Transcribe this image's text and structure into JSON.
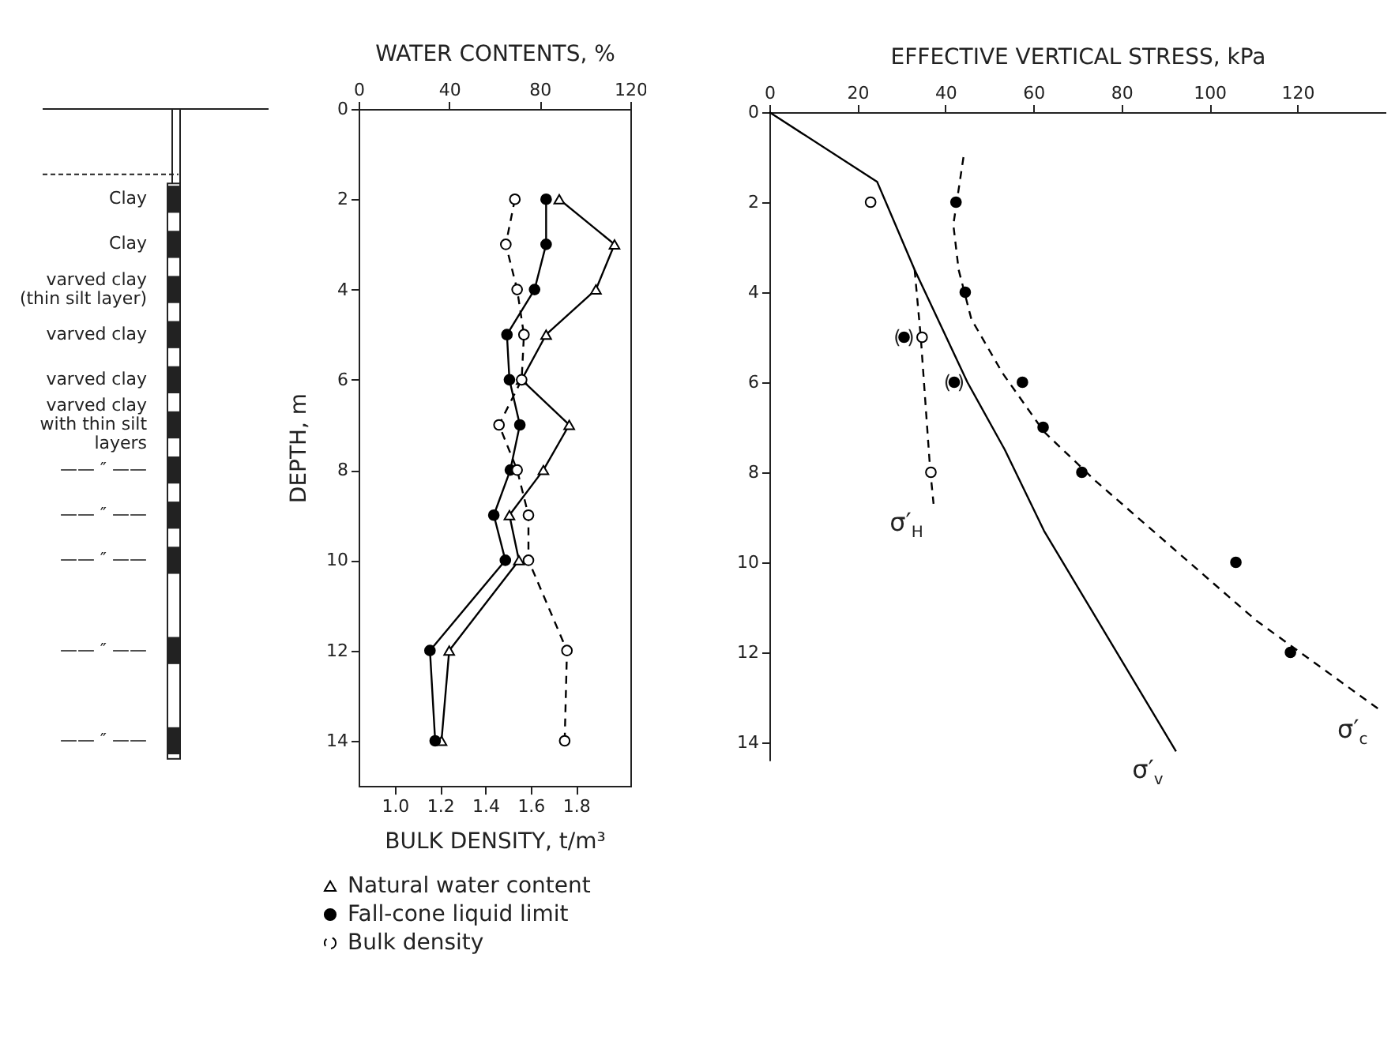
{
  "chart_data": [
    {
      "type": "other",
      "annotations": [
        "Clay",
        "Clay",
        "varved clay\n(thin silt layer)",
        "varved clay",
        "varved clay",
        "varved clay\nwith thin silt\nlayers",
        "—— ″ ——",
        "—— ″ ——",
        "—— ″ ——",
        "—— ″ ——",
        "—— ″ ——"
      ]
    },
    {
      "type": "line",
      "xlabel": "BULK DENSITY, t/m³",
      "x2label": "WATER CONTENTS, %",
      "ylabel": "DEPTH, m",
      "xlim": [
        0.84,
        2.04
      ],
      "xticks": [
        {
          "value": 1,
          "label": "1.0"
        },
        1.2,
        1.4,
        1.6,
        1.8
      ],
      "x2lim": [
        0,
        120
      ],
      "x2ticks": [
        0,
        40,
        80,
        120
      ],
      "ylim": [
        15,
        0
      ],
      "yticks": [
        0,
        2,
        4,
        6,
        8,
        10,
        12,
        14
      ],
      "legend": "bottom",
      "series": [
        {
          "name": "Natural water content",
          "color": "#000000",
          "axis": "x2",
          "marker": "triangle",
          "line_style": "solid",
          "x": [
            88.6,
            113,
            104.8,
            82.8,
            72,
            93,
            81.6,
            66.6,
            70.8,
            40,
            36.6
          ],
          "values": [
            2,
            3,
            4,
            5,
            6,
            7,
            8,
            9,
            10,
            12,
            14
          ]
        },
        {
          "name": "Fall-cone liquid limit",
          "color": "#000000",
          "axis": "x2",
          "marker": "circle",
          "line_style": "solid",
          "x": [
            82.8,
            82.8,
            77.7,
            65.5,
            66.6,
            71.2,
            67,
            59.7,
            64.8,
            31.5,
            33.8
          ],
          "values": [
            2,
            3,
            4,
            5,
            6,
            7,
            8,
            9,
            10,
            12,
            14
          ]
        },
        {
          "name": "Bulk density",
          "color": "#000000",
          "marker": "circle",
          "line_style": "dashed",
          "x": [
            1.53,
            1.49,
            1.54,
            1.57,
            1.56,
            1.46,
            1.54,
            1.59,
            1.59,
            1.76,
            1.75
          ],
          "values": [
            2,
            3,
            4,
            5,
            6,
            7,
            8,
            9,
            10,
            12,
            14
          ]
        }
      ]
    },
    {
      "type": "line",
      "xlabel": "EFFECTIVE VERTICAL STRESS, kPa",
      "xlim": [
        0,
        140
      ],
      "xticks": [
        0,
        20,
        40,
        60,
        80,
        100,
        120
      ],
      "ylim": [
        14.4,
        0
      ],
      "yticks": [
        0,
        2,
        4,
        6,
        8,
        10,
        12,
        14
      ],
      "series": [
        {
          "name": "σ′$_{v}$",
          "color": "#000000",
          "line_style": "solid",
          "marker": "none",
          "x": [
            0,
            24.5,
            33,
            45,
            53.5,
            62.4,
            92.4
          ],
          "values": [
            0,
            1.55,
            3.5,
            6,
            7.5,
            9.3,
            14.2
          ]
        },
        {
          "name": "σ′$_{H}$",
          "color": "#000000",
          "line_style": "dashed",
          "marker": "none",
          "x": [
            33,
            34.4,
            36.5,
            37.3
          ],
          "values": [
            3.5,
            5,
            7.9,
            8.7
          ]
        },
        {
          "name": "σ′$_{c}$",
          "color": "#000000",
          "line_style": "dashed",
          "marker": "none",
          "x": [
            44.1,
            41.8,
            43,
            45.9,
            53,
            62.4,
            74.2,
            110.7,
            139
          ],
          "values": [
            1,
            2.5,
            3.5,
            4.6,
            5.8,
            7.1,
            8.2,
            11.3,
            13.3
          ]
        },
        {
          "type": "scatter",
          "color": "#000000",
          "marker": "circle",
          "x": [
            42.4,
            44.5,
            30.6,
            42,
            57.5,
            62.2,
            71,
            106,
            118.4
          ],
          "values": [
            2,
            4,
            5,
            6,
            6,
            7,
            8,
            10,
            12
          ]
        },
        {
          "type": "scatter",
          "color": "#000000",
          "marker": "circle",
          "x": [
            23,
            34.7,
            36.7
          ],
          "values": [
            2,
            5,
            8
          ]
        }
      ],
      "annotations": [
        {
          "text": "(   )",
          "x": 30.6,
          "y": 5
        },
        {
          "text": "(   )",
          "x": 42,
          "y": 6
        }
      ]
    }
  ]
}
